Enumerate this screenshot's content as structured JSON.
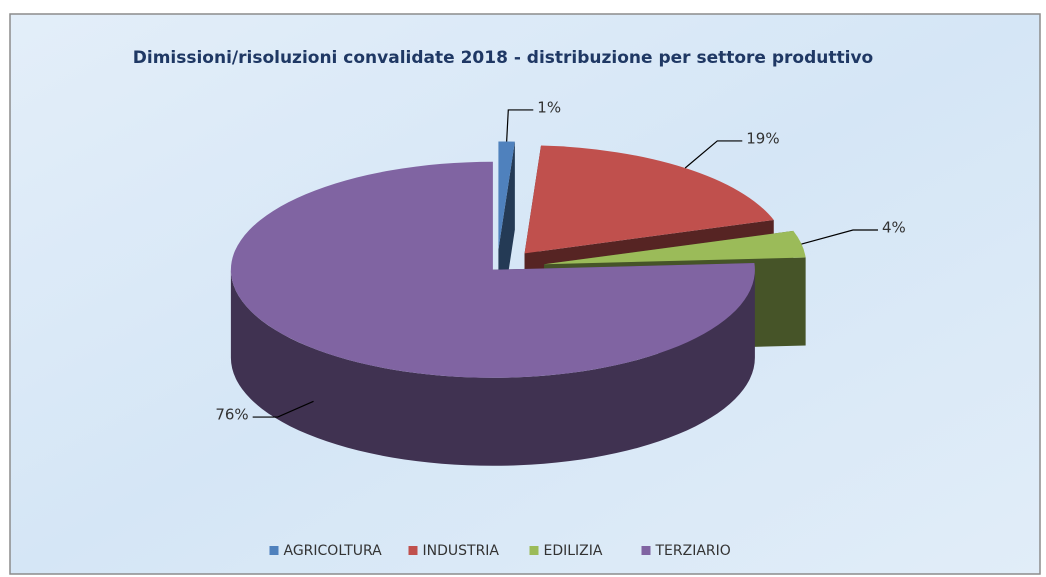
{
  "chart_data": {
    "type": "pie3d",
    "title": "Dimissioni/risoluzioni convalidate 2018 - distribuzione per settore produttivo",
    "categories": [
      "AGRICOLTURA",
      "INDUSTRIA",
      "EDILIZIA",
      "TERZIARIO"
    ],
    "values": [
      1,
      19,
      4,
      76
    ],
    "value_labels": [
      "1%",
      "19%",
      "4%",
      "76%"
    ],
    "colors": [
      "#4f81bd",
      "#c0504d",
      "#9bbb59",
      "#8064a2"
    ],
    "legend": "bottom"
  }
}
